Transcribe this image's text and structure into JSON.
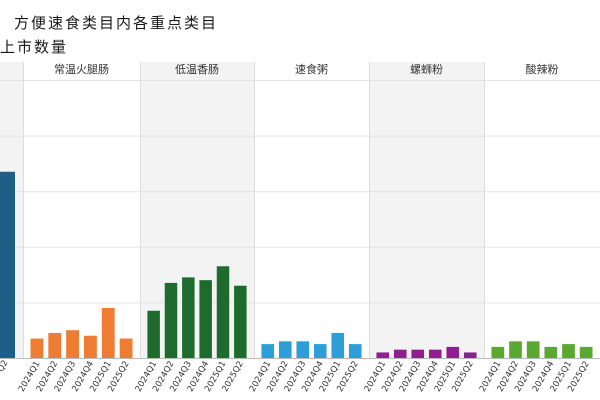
{
  "title_line1": "方便速食类目内各重点类目",
  "title_line2": "上市数量",
  "chart_data": {
    "type": "bar",
    "quarters": [
      "2024Q1",
      "2024Q2",
      "2024Q3",
      "2024Q4",
      "2025Q1",
      "2025Q2"
    ],
    "ylim": [
      0,
      100
    ],
    "panels": [
      {
        "name": "",
        "color": "#1f5f86",
        "visible_quarters": [
          "2025Q2"
        ],
        "values": [
          null,
          null,
          null,
          null,
          null,
          67
        ],
        "tick_labels": [
          "Q2"
        ]
      },
      {
        "name": "常温火腿肠",
        "color": "#ee7d33",
        "values": [
          7,
          9,
          10,
          8,
          18,
          7
        ],
        "tick_labels": [
          "2024Q1",
          "2024Q2",
          "2024Q3",
          "2024Q4",
          "2025Q1",
          "2025Q2"
        ]
      },
      {
        "name": "低温香肠",
        "color": "#1e6b2e",
        "values": [
          17,
          27,
          29,
          28,
          33,
          26
        ],
        "tick_labels": [
          "2024Q1",
          "2024Q2",
          "2024Q3",
          "2024Q4",
          "2025Q1",
          "2025Q2"
        ]
      },
      {
        "name": "速食粥",
        "color": "#2e9fd6",
        "values": [
          5,
          6,
          6,
          5,
          9,
          5
        ],
        "tick_labels": [
          "2024Q1",
          "2024Q2",
          "2024Q3",
          "2024Q4",
          "2025Q1",
          "2025Q2"
        ]
      },
      {
        "name": "螺蛳粉",
        "color": "#8e1f8e",
        "values": [
          2,
          3,
          3,
          3,
          4,
          2
        ],
        "tick_labels": [
          "2024Q1",
          "2024Q2",
          "2024Q3",
          "2024Q4",
          "2025Q1",
          "2025Q2"
        ]
      },
      {
        "name": "酸辣粉",
        "color": "#5aa832",
        "values": [
          4,
          6,
          6,
          4,
          5,
          4
        ],
        "tick_labels": [
          "2024Q1",
          "2024Q2",
          "2024Q3",
          "2024Q4",
          "2025Q1",
          "2025Q2"
        ]
      }
    ],
    "grid": true
  }
}
